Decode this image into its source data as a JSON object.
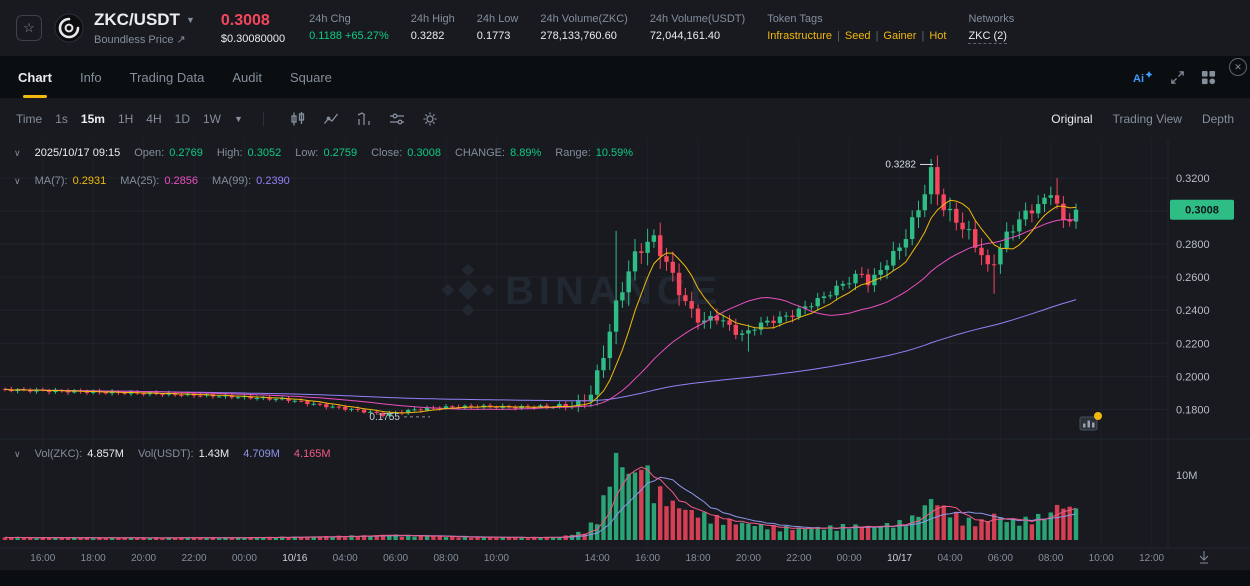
{
  "header": {
    "symbol": "ZKC/USDT",
    "subtitle": "Boundless Price",
    "price": "0.3008",
    "price_usd": "$0.30080000",
    "stats": [
      {
        "label": "24h Chg",
        "value": "0.1188 +65.27%"
      },
      {
        "label": "24h High",
        "value": "0.3282"
      },
      {
        "label": "24h Low",
        "value": "0.1773"
      },
      {
        "label": "24h Volume(ZKC)",
        "value": "278,133,760.60"
      },
      {
        "label": "24h Volume(USDT)",
        "value": "72,044,161.40"
      }
    ],
    "token_tags_label": "Token Tags",
    "token_tags": [
      "Infrastructure",
      "Seed",
      "Gainer",
      "Hot"
    ],
    "tag_divider": "|",
    "networks_label": "Networks",
    "networks_value": "ZKC (2)"
  },
  "tabs": {
    "items": [
      "Chart",
      "Info",
      "Trading Data",
      "Audit",
      "Square"
    ],
    "active": "Chart"
  },
  "toolbar": {
    "time_label": "Time",
    "intervals": [
      "1s",
      "15m",
      "1H",
      "4H",
      "1D",
      "1W"
    ],
    "active_interval": "15m",
    "views": [
      "Original",
      "Trading View",
      "Depth"
    ],
    "active_view": "Original"
  },
  "legend": {
    "datetime": "2025/10/17 09:15",
    "open_label": "Open:",
    "open": "0.2769",
    "high_label": "High:",
    "high": "0.3052",
    "low_label": "Low:",
    "low": "0.2759",
    "close_label": "Close:",
    "close": "0.3008",
    "change_label": "CHANGE:",
    "change": "8.89%",
    "range_label": "Range:",
    "range": "10.59%",
    "ma7_label": "MA(7):",
    "ma7": "0.2931",
    "ma25_label": "MA(25):",
    "ma25": "0.2856",
    "ma99_label": "MA(99):",
    "ma99": "0.2390"
  },
  "volume_legend": {
    "vol_zkc_label": "Vol(ZKC):",
    "vol_zkc": "4.857M",
    "vol_usdt_label": "Vol(USDT):",
    "vol_usdt": "1.43M",
    "ma_slow": "4.709M",
    "ma_fast": "4.165M"
  },
  "colors": {
    "up": "#2ebd85",
    "down": "#f6465d",
    "textGreen": "#0ecb81",
    "accent": "#f0b90b",
    "ma7": "#f0b90b",
    "ma25": "#eb4fc2",
    "ma99": "#9182f7",
    "volMaFast": "#ee5b86",
    "volMaSlow": "#8d97e8",
    "badge": "#2ebd85"
  },
  "chart_data": {
    "type": "candlestick",
    "interval": "15m",
    "watermark": "BINANCE",
    "last_price": "0.3008",
    "last_close": 0.3008,
    "price_min": 0.1645,
    "price_max": 0.343,
    "y_ticks": [
      "0.3200",
      "0.3000",
      "0.2800",
      "0.2600",
      "0.2400",
      "0.2200",
      "0.2000",
      "0.1800"
    ],
    "vol_tick": "10M",
    "high_annotation": "0.3282",
    "low_annotation": "0.1755",
    "ohlc": {
      "open": 0.2769,
      "high": 0.3052,
      "low": 0.2759,
      "close": 0.3008,
      "change_pct": 8.89,
      "range_pct": 10.59
    },
    "ma": {
      "ma7": 0.2931,
      "ma25": 0.2856,
      "ma99": 0.239
    },
    "volumes": {
      "vol_zkc_m": 4.857,
      "vol_usdt_m": 1.43,
      "vol_ma_slow_m": 4.709,
      "vol_ma_fast_m": 4.165
    },
    "candle_count": 171,
    "x_ticks": [
      {
        "label": "16:00",
        "i": 6
      },
      {
        "label": "18:00",
        "i": 14
      },
      {
        "label": "20:00",
        "i": 22
      },
      {
        "label": "22:00",
        "i": 30
      },
      {
        "label": "00:00",
        "i": 38
      },
      {
        "label": "10/16",
        "i": 46,
        "d": 1
      },
      {
        "label": "04:00",
        "i": 54
      },
      {
        "label": "06:00",
        "i": 62
      },
      {
        "label": "08:00",
        "i": 70
      },
      {
        "label": "10:00",
        "i": 78
      },
      {
        "label": "14:00",
        "i": 94
      },
      {
        "label": "16:00",
        "i": 102
      },
      {
        "label": "18:00",
        "i": 110
      },
      {
        "label": "20:00",
        "i": 118
      },
      {
        "label": "22:00",
        "i": 126
      },
      {
        "label": "00:00",
        "i": 134
      },
      {
        "label": "10/17",
        "i": 142,
        "d": 1
      },
      {
        "label": "04:00",
        "i": 150
      },
      {
        "label": "06:00",
        "i": 158
      },
      {
        "label": "08:00",
        "i": 166
      },
      {
        "label": "10:00",
        "i": 174
      },
      {
        "label": "12:00",
        "i": 182
      }
    ],
    "anchors": [
      [
        0,
        0.192
      ],
      [
        8,
        0.1912
      ],
      [
        16,
        0.1904
      ],
      [
        24,
        0.1896
      ],
      [
        32,
        0.1886
      ],
      [
        40,
        0.1872
      ],
      [
        46,
        0.1858
      ],
      [
        52,
        0.182
      ],
      [
        56,
        0.18
      ],
      [
        59,
        0.1782
      ],
      [
        61,
        0.1768
      ],
      [
        63,
        0.178
      ],
      [
        66,
        0.1798
      ],
      [
        70,
        0.1812
      ],
      [
        76,
        0.1818
      ],
      [
        82,
        0.1812
      ],
      [
        88,
        0.1818
      ],
      [
        92,
        0.1832
      ],
      [
        94,
        0.19
      ],
      [
        95,
        0.2
      ],
      [
        96,
        0.214
      ],
      [
        97,
        0.228
      ],
      [
        98,
        0.242
      ],
      [
        99,
        0.254
      ],
      [
        100,
        0.264
      ],
      [
        101,
        0.272
      ],
      [
        102,
        0.278
      ],
      [
        103,
        0.2815
      ],
      [
        104,
        0.282
      ],
      [
        105,
        0.276
      ],
      [
        106,
        0.269
      ],
      [
        107,
        0.26
      ],
      [
        108,
        0.252
      ],
      [
        109,
        0.245
      ],
      [
        110,
        0.239
      ],
      [
        111,
        0.235
      ],
      [
        112,
        0.233
      ],
      [
        113,
        0.235
      ],
      [
        114,
        0.236
      ],
      [
        115,
        0.233
      ],
      [
        116,
        0.23
      ],
      [
        117,
        0.227
      ],
      [
        118,
        0.225
      ],
      [
        119,
        0.227
      ],
      [
        120,
        0.23
      ],
      [
        122,
        0.233
      ],
      [
        124,
        0.235
      ],
      [
        126,
        0.2375
      ],
      [
        128,
        0.242
      ],
      [
        130,
        0.246
      ],
      [
        132,
        0.2505
      ],
      [
        134,
        0.256
      ],
      [
        136,
        0.26
      ],
      [
        137,
        0.262
      ],
      [
        138,
        0.257
      ],
      [
        139,
        0.259
      ],
      [
        140,
        0.265
      ],
      [
        141,
        0.269
      ],
      [
        142,
        0.273
      ],
      [
        143,
        0.279
      ],
      [
        144,
        0.285
      ],
      [
        145,
        0.293
      ],
      [
        146,
        0.302
      ],
      [
        147,
        0.312
      ],
      [
        148,
        0.323
      ],
      [
        149,
        0.312
      ],
      [
        150,
        0.302
      ],
      [
        151,
        0.298
      ],
      [
        152,
        0.295
      ],
      [
        153,
        0.29
      ],
      [
        154,
        0.286
      ],
      [
        155,
        0.28
      ],
      [
        156,
        0.274
      ],
      [
        157,
        0.265
      ],
      [
        158,
        0.27
      ],
      [
        159,
        0.278
      ],
      [
        160,
        0.285
      ],
      [
        161,
        0.29
      ],
      [
        162,
        0.295
      ],
      [
        163,
        0.298
      ],
      [
        164,
        0.301
      ],
      [
        165,
        0.304
      ],
      [
        166,
        0.306
      ],
      [
        167,
        0.312
      ],
      [
        168,
        0.304
      ],
      [
        169,
        0.293
      ],
      [
        170,
        0.296
      ],
      [
        171,
        0.3008
      ]
    ],
    "amp": [
      [
        0,
        0.0012
      ],
      [
        88,
        0.0012
      ],
      [
        92,
        0.004
      ],
      [
        96,
        0.007
      ],
      [
        104,
        0.0065
      ],
      [
        110,
        0.0045
      ],
      [
        118,
        0.003
      ],
      [
        132,
        0.0028
      ],
      [
        140,
        0.0045
      ],
      [
        148,
        0.006
      ],
      [
        156,
        0.005
      ],
      [
        164,
        0.0045
      ],
      [
        171,
        0.004
      ]
    ],
    "specials": {
      "61": {
        "l": 0.1755
      },
      "97": {
        "h": 0.288
      },
      "104": {
        "h": 0.286
      },
      "118": {
        "l": 0.215
      },
      "147": {
        "h": 0.3282
      },
      "157": {
        "l": 0.25
      },
      "167": {
        "h": 0.32
      }
    },
    "vol_anchors": [
      [
        0,
        0.35
      ],
      [
        20,
        0.3
      ],
      [
        40,
        0.35
      ],
      [
        52,
        0.5
      ],
      [
        61,
        0.7
      ],
      [
        70,
        0.45
      ],
      [
        80,
        0.35
      ],
      [
        88,
        0.4
      ],
      [
        92,
        1.2
      ],
      [
        94,
        3
      ],
      [
        96,
        8
      ],
      [
        97,
        13.2
      ],
      [
        98,
        11
      ],
      [
        100,
        8.5
      ],
      [
        101,
        10.5
      ],
      [
        102,
        9
      ],
      [
        104,
        6.5
      ],
      [
        106,
        5
      ],
      [
        108,
        4.2
      ],
      [
        110,
        3.6
      ],
      [
        112,
        3.2
      ],
      [
        114,
        2.8
      ],
      [
        116,
        2.4
      ],
      [
        118,
        2.2
      ],
      [
        122,
        1.8
      ],
      [
        126,
        1.6
      ],
      [
        130,
        1.7
      ],
      [
        134,
        2
      ],
      [
        138,
        1.8
      ],
      [
        142,
        2.4
      ],
      [
        144,
        3
      ],
      [
        146,
        4.5
      ],
      [
        147,
        6
      ],
      [
        148,
        5
      ],
      [
        150,
        3.8
      ],
      [
        152,
        3
      ],
      [
        154,
        2.4
      ],
      [
        156,
        2.8
      ],
      [
        157,
        3.6
      ],
      [
        158,
        3
      ],
      [
        160,
        2.6
      ],
      [
        162,
        2.8
      ],
      [
        164,
        3.2
      ],
      [
        166,
        3.6
      ],
      [
        167,
        5.2
      ],
      [
        168,
        4.6
      ],
      [
        169,
        4.2
      ],
      [
        170,
        4.857
      ]
    ],
    "vol_specials": {
      "96": 8.2,
      "97": 13.4,
      "98": 11.2,
      "101": 10.8,
      "147": 6.3,
      "167": 5.4,
      "170": 4.857
    }
  }
}
